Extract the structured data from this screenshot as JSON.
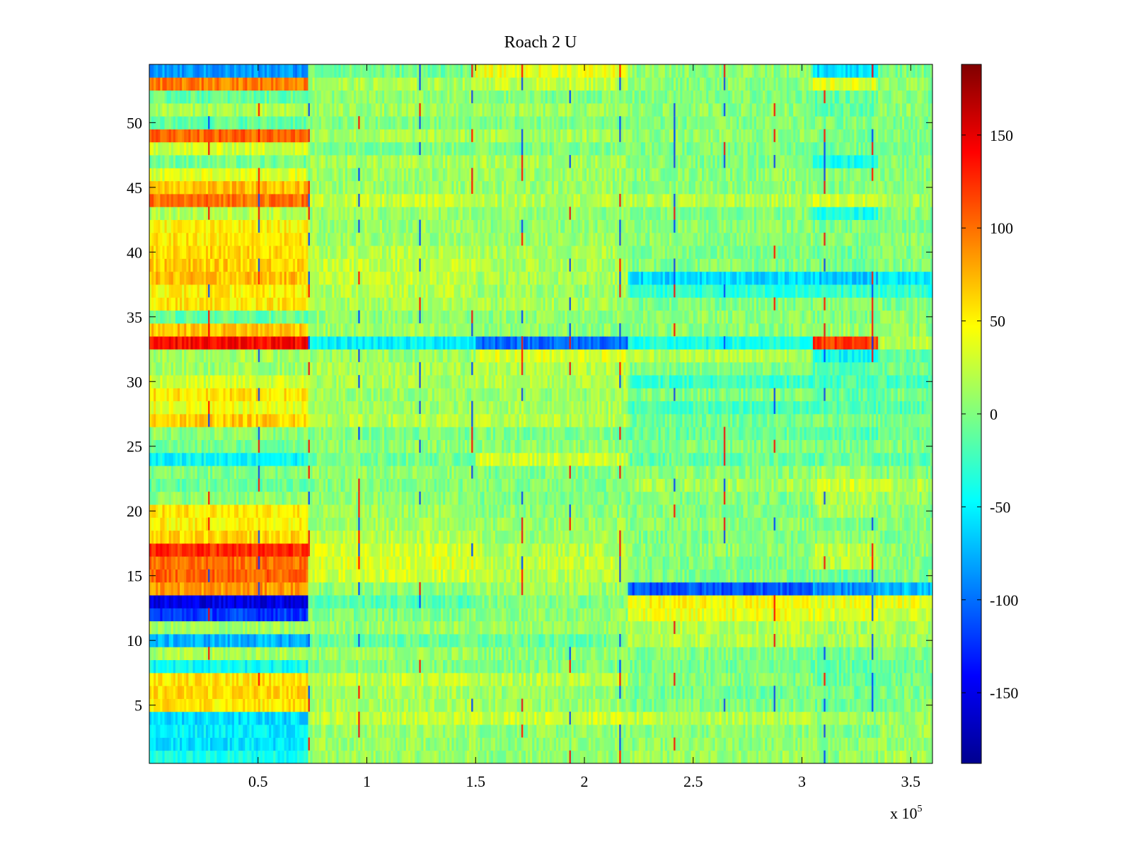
{
  "chart_data": {
    "type": "heatmap",
    "title": "Roach 2 U",
    "xlabel": "",
    "ylabel": "",
    "x_multiplier_label": "x 10",
    "x_multiplier_exponent": "5",
    "xlim": [
      0,
      3.6
    ],
    "ylim": [
      0.5,
      54.5
    ],
    "x_ticks": [
      0.5,
      1,
      1.5,
      2,
      2.5,
      3,
      3.5
    ],
    "x_tick_labels": [
      "0.5",
      "1",
      "1.5",
      "2",
      "2.5",
      "3",
      "3.5"
    ],
    "y_ticks": [
      5,
      10,
      15,
      20,
      25,
      30,
      35,
      40,
      45,
      50
    ],
    "y_tick_labels": [
      "5",
      "10",
      "15",
      "20",
      "25",
      "30",
      "35",
      "40",
      "45",
      "50"
    ],
    "colorbar": {
      "colormap": "jet",
      "range": [
        -188,
        188
      ],
      "ticks": [
        150,
        100,
        50,
        0,
        -50,
        -100,
        -150
      ],
      "tick_labels": [
        "150",
        "100",
        "50",
        "0",
        "-50",
        "-100",
        "-150"
      ]
    },
    "rows": 54,
    "time_segments": [
      0,
      0.73,
      1.5,
      2.2,
      3.05,
      3.35,
      3.6
    ],
    "row_segment_means": [
      [
        -40,
        10,
        5,
        10,
        5,
        15
      ],
      [
        -55,
        10,
        5,
        5,
        5,
        10
      ],
      [
        -50,
        10,
        5,
        5,
        0,
        10
      ],
      [
        -60,
        25,
        30,
        20,
        10,
        10
      ],
      [
        55,
        15,
        10,
        0,
        -5,
        0
      ],
      [
        60,
        15,
        10,
        -5,
        -5,
        0
      ],
      [
        55,
        25,
        20,
        0,
        -10,
        -5
      ],
      [
        -45,
        0,
        0,
        -5,
        -10,
        -5
      ],
      [
        15,
        10,
        5,
        0,
        -5,
        0
      ],
      [
        -75,
        -10,
        -10,
        20,
        15,
        15
      ],
      [
        10,
        10,
        10,
        20,
        15,
        15
      ],
      [
        -120,
        0,
        5,
        40,
        35,
        30
      ],
      [
        -150,
        -15,
        0,
        45,
        40,
        40
      ],
      [
        85,
        5,
        10,
        -110,
        -90,
        -70
      ],
      [
        105,
        30,
        20,
        0,
        -10,
        0
      ],
      [
        100,
        35,
        25,
        0,
        20,
        0
      ],
      [
        125,
        30,
        20,
        5,
        25,
        5
      ],
      [
        60,
        20,
        10,
        0,
        5,
        0
      ],
      [
        50,
        15,
        10,
        5,
        0,
        5
      ],
      [
        55,
        10,
        5,
        0,
        15,
        5
      ],
      [
        5,
        5,
        0,
        0,
        20,
        10
      ],
      [
        -10,
        0,
        0,
        15,
        30,
        20
      ],
      [
        0,
        5,
        0,
        5,
        10,
        0
      ],
      [
        -45,
        -5,
        30,
        -10,
        -10,
        -15
      ],
      [
        -5,
        5,
        5,
        0,
        0,
        0
      ],
      [
        5,
        0,
        0,
        -10,
        -15,
        -10
      ],
      [
        65,
        20,
        20,
        -5,
        0,
        -5
      ],
      [
        40,
        10,
        15,
        -20,
        -15,
        -15
      ],
      [
        55,
        10,
        10,
        0,
        -10,
        -5
      ],
      [
        30,
        15,
        20,
        -25,
        -20,
        -20
      ],
      [
        10,
        15,
        20,
        0,
        -15,
        -5
      ],
      [
        15,
        10,
        35,
        20,
        -45,
        -10
      ],
      [
        140,
        -50,
        -100,
        -40,
        120,
        20
      ],
      [
        70,
        10,
        5,
        5,
        10,
        5
      ],
      [
        -10,
        5,
        5,
        5,
        0,
        5
      ],
      [
        55,
        15,
        15,
        0,
        5,
        0
      ],
      [
        50,
        20,
        10,
        -30,
        -30,
        -30
      ],
      [
        70,
        25,
        15,
        -60,
        -65,
        -50
      ],
      [
        65,
        25,
        15,
        0,
        -5,
        0
      ],
      [
        60,
        20,
        15,
        0,
        -5,
        0
      ],
      [
        55,
        10,
        10,
        5,
        0,
        5
      ],
      [
        50,
        10,
        5,
        5,
        0,
        0
      ],
      [
        20,
        10,
        5,
        0,
        -40,
        0
      ],
      [
        100,
        25,
        20,
        20,
        30,
        15
      ],
      [
        70,
        10,
        10,
        5,
        0,
        5
      ],
      [
        35,
        10,
        10,
        5,
        5,
        5
      ],
      [
        -5,
        15,
        15,
        0,
        -40,
        0
      ],
      [
        30,
        0,
        0,
        0,
        -5,
        0
      ],
      [
        105,
        15,
        15,
        5,
        0,
        0
      ],
      [
        -10,
        0,
        0,
        0,
        0,
        0
      ],
      [
        15,
        10,
        10,
        5,
        -10,
        5
      ],
      [
        -10,
        5,
        0,
        0,
        -10,
        0
      ],
      [
        95,
        15,
        25,
        5,
        35,
        5
      ],
      [
        -85,
        -5,
        40,
        5,
        -60,
        0
      ]
    ],
    "vertical_streak_positions": [
      0.27,
      0.5,
      0.73,
      0.96,
      1.24,
      1.48,
      1.71,
      1.93,
      2.16,
      2.41,
      2.64,
      2.87,
      3.1,
      3.32
    ]
  }
}
